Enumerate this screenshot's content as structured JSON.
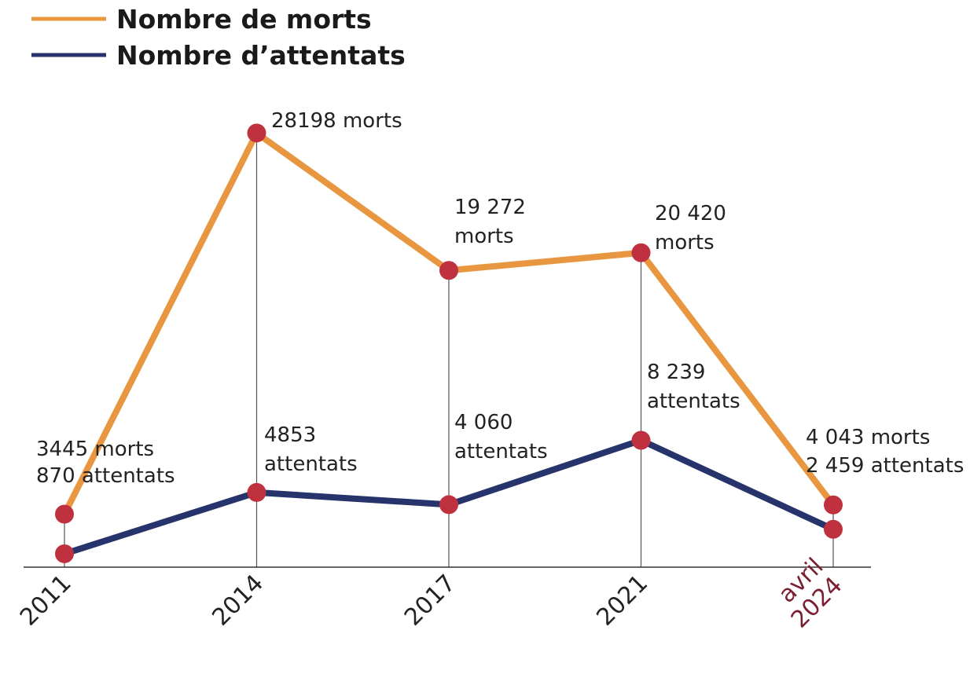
{
  "chart_data": {
    "type": "line",
    "categories": [
      "2011",
      "2014",
      "2017",
      "2021",
      "avril 2024"
    ],
    "series": [
      {
        "name": "Nombre de morts",
        "color": "#e8963f",
        "values": [
          3445,
          28198,
          19272,
          20420,
          4043
        ],
        "value_labels": [
          "3445 morts",
          "28198 morts",
          "19 272 morts",
          "20 420 morts",
          "4 043 morts"
        ]
      },
      {
        "name": "Nombre d’attentats",
        "color": "#27336b",
        "values": [
          870,
          4853,
          4060,
          8239,
          2459
        ],
        "value_labels": [
          "870 attentats",
          "4853 attentats",
          "4 060 attentats",
          "8 239 attentats",
          "2 459 attentats"
        ]
      }
    ],
    "marker_color": "#c0313f",
    "ylim": [
      0,
      30000
    ]
  }
}
